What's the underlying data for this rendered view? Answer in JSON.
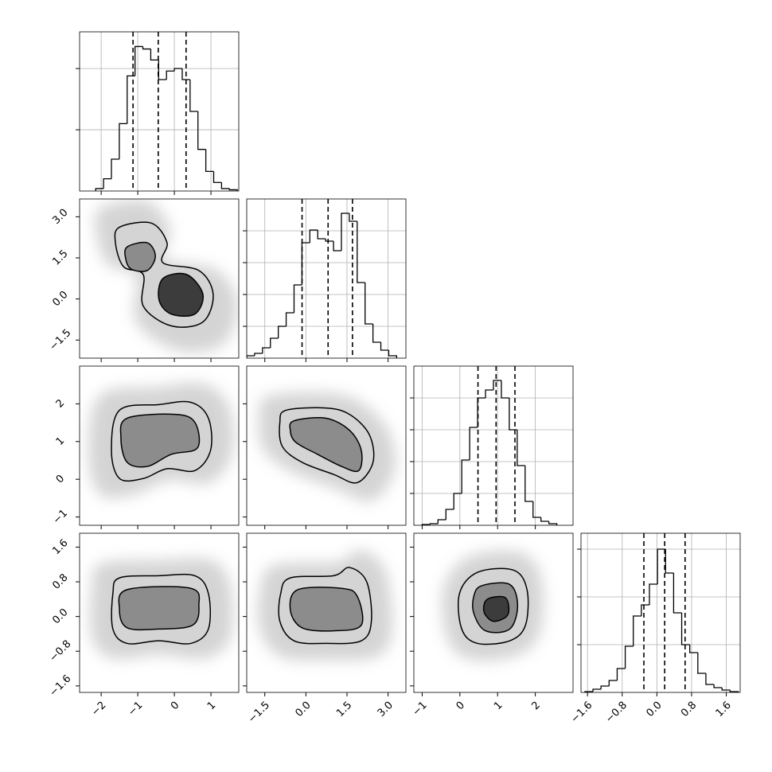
{
  "chart_data": {
    "type": "corner",
    "color": "#000000",
    "variables": [
      {
        "lim": [
          -2.59,
          1.76
        ],
        "ticks": [
          {
            "value": -2,
            "label": "−2"
          },
          {
            "value": -1,
            "label": "−1"
          },
          0,
          1
        ]
      },
      {
        "lim": [
          -2.16,
          3.65
        ],
        "ticks": [
          {
            "value": -1.5,
            "label": "−1.5"
          },
          {
            "value": 0,
            "label": "0.0"
          },
          1.5,
          {
            "value": 3,
            "label": "3.0"
          }
        ]
      },
      {
        "lim": [
          -1.22,
          3.0
        ],
        "ticks": [
          {
            "value": -1,
            "label": "−1"
          },
          0,
          1,
          2
        ]
      },
      {
        "lim": [
          -1.75,
          1.92
        ],
        "ticks": [
          {
            "value": -1.6,
            "label": "−1.6"
          },
          {
            "value": -0.8,
            "label": "−0.8"
          },
          {
            "value": 0,
            "label": "0.0"
          },
          0.8,
          1.6
        ]
      }
    ],
    "histograms": [
      {
        "ylim": [
          0,
          1.3
        ],
        "yticks": [
          0.5,
          1.0
        ],
        "bins": [
          -2.15,
          -1.935,
          -1.72,
          -1.505,
          -1.29,
          -1.075,
          -0.86,
          -0.645,
          -0.43,
          -0.215,
          0,
          0.215,
          0.43,
          0.645,
          0.86,
          1.075,
          1.29,
          1.505,
          1.72
        ],
        "counts": [
          0.02,
          0.1,
          0.26,
          0.55,
          0.94,
          1.18,
          1.16,
          1.07,
          0.91,
          0.98,
          1.0,
          0.91,
          0.65,
          0.34,
          0.16,
          0.07,
          0.02,
          0.01
        ],
        "quantiles": [
          -1.13,
          -0.44,
          0.32
        ]
      },
      {
        "ylim": [
          0,
          1.0
        ],
        "yticks": [
          0.2,
          0.4,
          0.6,
          0.8
        ],
        "bins": [
          -2.16,
          -1.872,
          -1.584,
          -1.296,
          -1.008,
          -0.72,
          -0.432,
          -0.144,
          0.144,
          0.432,
          0.72,
          1.008,
          1.296,
          1.584,
          1.872,
          2.16,
          2.448,
          2.736,
          3.024,
          3.312
        ],
        "counts": [
          0.015,
          0.03,
          0.065,
          0.125,
          0.2,
          0.285,
          0.46,
          0.725,
          0.805,
          0.75,
          0.735,
          0.675,
          0.91,
          0.86,
          0.475,
          0.215,
          0.1,
          0.05,
          0.015
        ],
        "quantiles": [
          -0.14,
          0.81,
          1.7
        ]
      },
      {
        "ylim": [
          0,
          1.0
        ],
        "yticks": [
          0.2,
          0.4,
          0.6,
          0.8
        ],
        "bins": [
          -1.0,
          -0.79,
          -0.58,
          -0.37,
          -0.16,
          0.05,
          0.26,
          0.47,
          0.68,
          0.89,
          1.1,
          1.31,
          1.52,
          1.73,
          1.94,
          2.15,
          2.36,
          2.57
        ],
        "counts": [
          0.005,
          0.01,
          0.035,
          0.1,
          0.2,
          0.41,
          0.615,
          0.8,
          0.85,
          0.91,
          0.8,
          0.6,
          0.375,
          0.15,
          0.05,
          0.025,
          0.01
        ],
        "quantiles": [
          0.48,
          0.96,
          1.46
        ]
      },
      {
        "ylim": [
          0,
          1.0
        ],
        "yticks": [
          0.3,
          0.6,
          0.9
        ],
        "bins": [
          -1.66,
          -1.474,
          -1.288,
          -1.102,
          -0.916,
          -0.73,
          -0.544,
          -0.358,
          -0.172,
          0.014,
          0.2,
          0.386,
          0.572,
          0.758,
          0.944,
          1.13,
          1.316,
          1.502,
          1.688,
          1.874
        ],
        "counts": [
          0.005,
          0.02,
          0.04,
          0.075,
          0.15,
          0.29,
          0.48,
          0.55,
          0.68,
          0.9,
          0.75,
          0.5,
          0.3,
          0.25,
          0.12,
          0.05,
          0.03,
          0.015,
          0.005
        ],
        "quantiles": [
          -0.3,
          0.18,
          0.65
        ]
      }
    ],
    "panels": [
      {
        "x_var": 0,
        "y_var": 1,
        "contours": [
          {
            "x": [
              -1.5,
              -0.63,
              -0.2,
              -0.31,
              0.67,
              1.06,
              0.78,
              -0.09,
              -0.85,
              -0.85,
              -1.39,
              -1.61
            ],
            "y": [
              2.62,
              2.77,
              2.05,
              1.32,
              1.04,
              0.17,
              -0.84,
              -0.98,
              -0.26,
              0.89,
              1.18,
              2.05
            ]
          },
          {
            "x": [
              -1.29,
              -0.74,
              -0.52,
              -0.74,
              -1.18,
              -1.33
            ],
            "y": [
              1.9,
              2.05,
              1.56,
              1.04,
              1.09,
              1.47
            ]
          },
          {
            "x": [
              -0.31,
              0.34,
              0.78,
              0.56,
              -0.09,
              -0.42
            ],
            "y": [
              0.75,
              0.89,
              0.17,
              -0.55,
              -0.55,
              -0.03
            ]
          }
        ]
      },
      {
        "x_var": 0,
        "y_var": 2,
        "contours": [
          {
            "x": [
              -1.5,
              -0.42,
              0.45,
              0.93,
              0.99,
              0.56,
              -0.2,
              -0.85,
              -1.5,
              -1.72
            ],
            "y": [
              1.83,
              1.98,
              2.04,
              1.62,
              0.77,
              0.23,
              0.28,
              0.02,
              0.02,
              0.77
            ]
          },
          {
            "x": [
              -1.29,
              0.02,
              0.56,
              0.63,
              -0.09,
              -0.74,
              -1.29,
              -1.46
            ],
            "y": [
              1.62,
              1.72,
              1.51,
              0.83,
              0.66,
              0.34,
              0.45,
              1.09
            ]
          }
        ]
      },
      {
        "x_var": 0,
        "y_var": 3,
        "contours": [
          {
            "x": [
              -1.5,
              -0.42,
              0.56,
              0.93,
              0.93,
              0.45,
              -0.42,
              -1.29,
              -1.68,
              -1.68
            ],
            "y": [
              0.89,
              0.94,
              0.94,
              0.53,
              -0.29,
              -0.62,
              -0.56,
              -0.62,
              -0.29,
              0.53
            ]
          },
          {
            "x": [
              -1.29,
              0.45,
              0.67,
              0.5,
              -0.42,
              -1.29,
              -1.5
            ],
            "y": [
              0.62,
              0.65,
              0.25,
              -0.2,
              -0.29,
              -0.26,
              0.16
            ]
          }
        ]
      },
      {
        "x_var": 1,
        "y_var": 2,
        "contours": [
          {
            "x": [
              -0.72,
              0.72,
              1.59,
              2.31,
              2.45,
              1.87,
              1.01,
              -0.14,
              -0.86,
              -0.95
            ],
            "y": [
              1.83,
              1.89,
              1.72,
              1.19,
              0.45,
              -0.09,
              0.13,
              0.45,
              0.87,
              1.51
            ]
          },
          {
            "x": [
              -0.43,
              0.72,
              1.59,
              2.02,
              1.93,
              1.3,
              0.43,
              -0.37,
              -0.57
            ],
            "y": [
              1.55,
              1.62,
              1.3,
              0.77,
              0.23,
              0.34,
              0.66,
              0.98,
              1.3
            ]
          }
        ]
      },
      {
        "x_var": 1,
        "y_var": 3,
        "contours": [
          {
            "x": [
              -0.57,
              1.01,
              1.59,
              2.22,
              2.39,
              2.02,
              0.72,
              -0.43,
              -0.95,
              -0.92
            ],
            "y": [
              0.89,
              0.94,
              1.13,
              0.8,
              -0.11,
              -0.56,
              -0.62,
              -0.56,
              -0.11,
              0.53
            ]
          },
          {
            "x": [
              -0.29,
              1.3,
              1.87,
              2.02,
              1.01,
              -0.14,
              -0.57
            ],
            "y": [
              0.62,
              0.65,
              0.47,
              -0.2,
              -0.33,
              -0.26,
              0.16
            ]
          }
        ]
      },
      {
        "x_var": 2,
        "y_var": 3,
        "contours": [
          {
            "x": [
              0.47,
              1.42,
              1.78,
              1.74,
              1.32,
              0.47,
              0.05,
              -0.01
            ],
            "y": [
              1.02,
              1.07,
              0.62,
              -0.2,
              -0.56,
              -0.62,
              -0.29,
              0.53
            ]
          },
          {
            "x": [
              0.58,
              1.32,
              1.53,
              1.32,
              0.68,
              0.37,
              0.37
            ],
            "y": [
              0.71,
              0.74,
              0.25,
              -0.29,
              -0.33,
              0.07,
              0.47
            ]
          },
          {
            "x": [
              0.73,
              1.21,
              1.27,
              0.89,
              0.64
            ],
            "y": [
              0.4,
              0.43,
              0.04,
              -0.11,
              0.11
            ]
          }
        ]
      }
    ]
  }
}
